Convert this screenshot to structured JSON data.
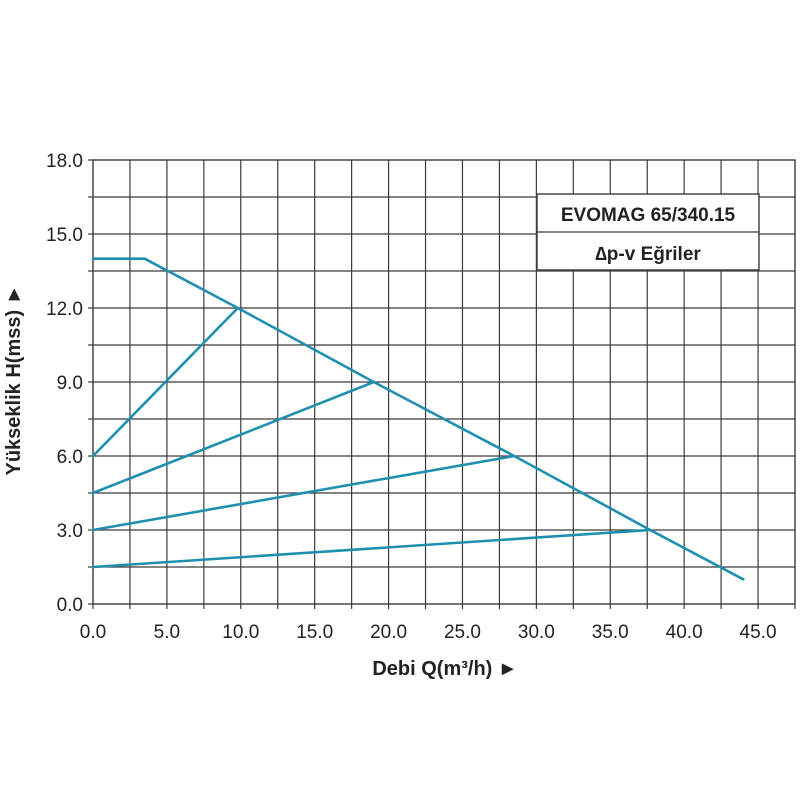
{
  "chart_data": {
    "type": "line",
    "title": "EVOMAG 65/340.15",
    "subtitle": "∆p-v Eğriler",
    "xlabel": "Debi Q(m³/h) ►",
    "ylabel": "Yükseklik H(mss) ►",
    "xlim": [
      0,
      47.5
    ],
    "ylim": [
      0,
      18
    ],
    "xticks": [
      "0.0",
      "5.0",
      "10.0",
      "15.0",
      "20.0",
      "25.0",
      "30.0",
      "35.0",
      "40.0",
      "45.0"
    ],
    "yticks": [
      "0.0",
      "3.0",
      "6.0",
      "9.0",
      "12.0",
      "15.0",
      "18.0"
    ],
    "grid": true,
    "legend_position": "top-right",
    "color": "#1f8fb0",
    "series": [
      {
        "x": [
          0,
          3.5,
          9.8,
          19.0,
          28.5,
          37.7,
          44.0
        ],
        "y": [
          14.0,
          14.0,
          12.0,
          9.0,
          6.0,
          3.0,
          1.0
        ]
      },
      {
        "x": [
          0,
          9.8
        ],
        "y": [
          6.0,
          12.0
        ]
      },
      {
        "x": [
          0,
          19.0
        ],
        "y": [
          4.5,
          9.0
        ]
      },
      {
        "x": [
          0,
          28.5
        ],
        "y": [
          3.0,
          6.0
        ]
      },
      {
        "x": [
          0,
          37.7
        ],
        "y": [
          1.5,
          3.0
        ]
      }
    ]
  }
}
